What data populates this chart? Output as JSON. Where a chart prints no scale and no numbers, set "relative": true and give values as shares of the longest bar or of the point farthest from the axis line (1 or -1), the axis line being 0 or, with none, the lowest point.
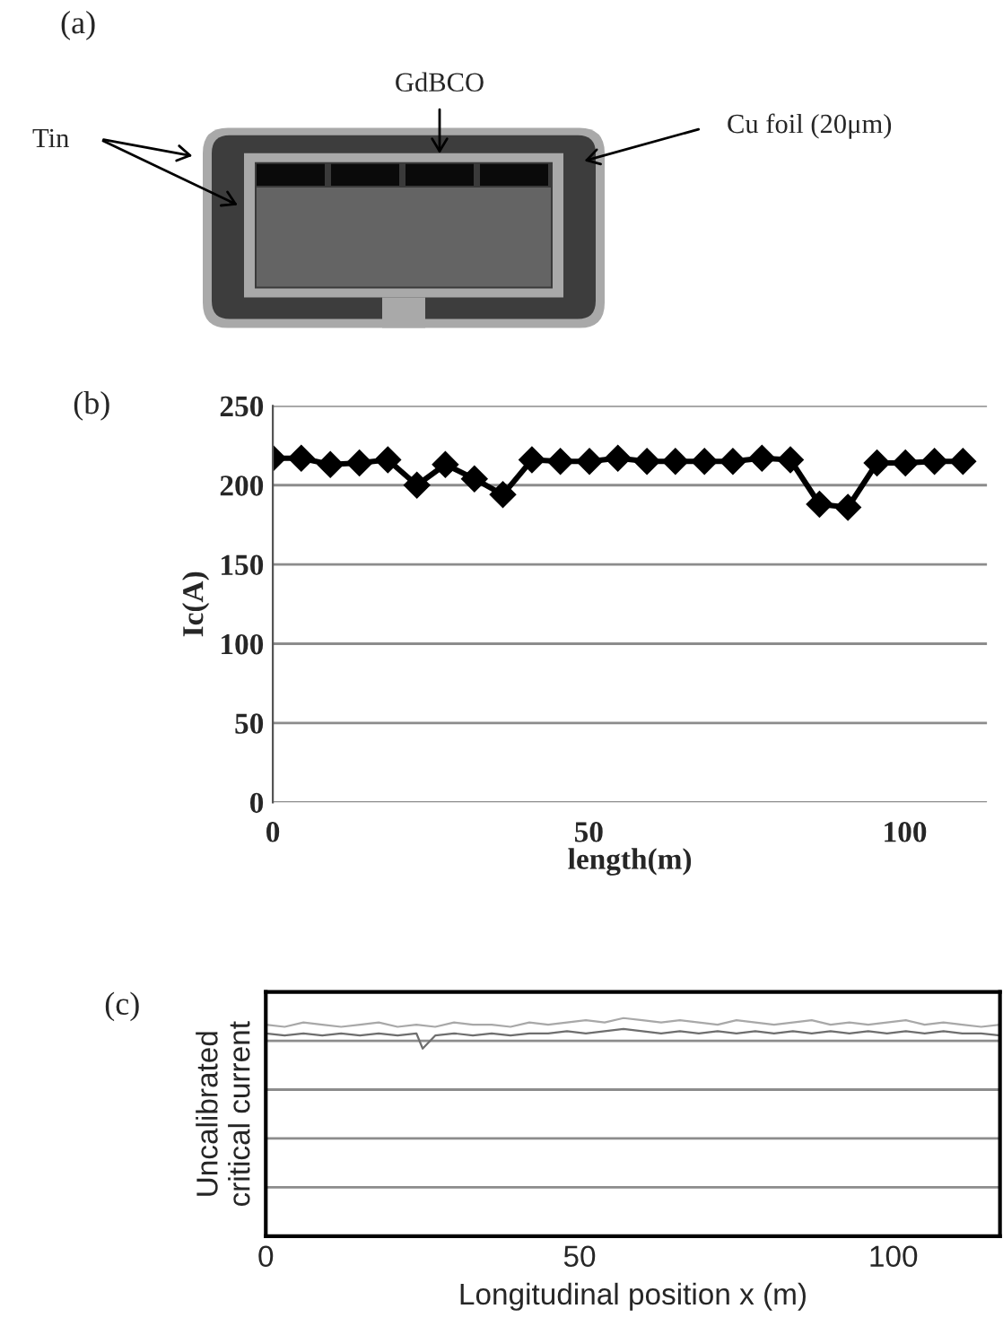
{
  "chart_data": [
    {
      "type": "other",
      "title": "(a)",
      "annotations": [
        "Tin",
        "GdBCO",
        "Cu foil (20μm)"
      ]
    },
    {
      "type": "line",
      "title": "(b)",
      "xlabel": "length(m)",
      "ylabel": "Ic(A)",
      "x": [
        0,
        4.5,
        9.1,
        13.7,
        18.2,
        22.8,
        27.3,
        31.9,
        36.4,
        41,
        45.5,
        50.1,
        54.6,
        59.2,
        63.7,
        68.3,
        72.8,
        77.4,
        81.9,
        86.5,
        91,
        95.6,
        100.1,
        104.7,
        109.2
      ],
      "series": [
        {
          "color": "#000000",
          "values": [
            217,
            217,
            213,
            214,
            216,
            200,
            213,
            204,
            194,
            216,
            215,
            215,
            217,
            215,
            215,
            215,
            215,
            217,
            216,
            188,
            186,
            214,
            214,
            215,
            215
          ]
        }
      ],
      "xlim": [
        0,
        113
      ],
      "xticks": [
        0,
        50,
        100
      ],
      "ylim": [
        0,
        250
      ],
      "yticks": [
        0,
        50,
        100,
        150,
        200,
        250
      ],
      "grid": "y",
      "marker": "diamond",
      "line_style": "solid"
    },
    {
      "type": "line",
      "title": "(c)",
      "xlabel": "Longitudinal position x (m)",
      "ylabel": "Uncalibrated\ncritical current",
      "relative": true,
      "xlim": [
        0,
        117
      ],
      "xticks": [
        0,
        50,
        100
      ],
      "tick_labels": "x",
      "grid": "y",
      "marker": "none",
      "line_style": "solid",
      "series": [
        {
          "color": "#a8a8a8",
          "x": [
            0,
            3,
            6,
            9,
            12,
            15,
            18,
            21,
            24,
            27,
            30,
            33,
            36,
            39,
            42,
            45,
            48,
            51,
            54,
            57,
            60,
            63,
            66,
            69,
            72,
            75,
            78,
            81,
            84,
            87,
            90,
            93,
            96,
            99,
            102,
            105,
            108,
            111,
            114,
            117
          ],
          "values": [
            0.97,
            0.96,
            0.98,
            0.97,
            0.96,
            0.97,
            0.98,
            0.96,
            0.97,
            0.96,
            0.98,
            0.97,
            0.97,
            0.96,
            0.98,
            0.97,
            0.98,
            0.99,
            0.98,
            1.0,
            0.99,
            0.98,
            0.99,
            0.98,
            0.97,
            0.99,
            0.98,
            0.97,
            0.98,
            0.99,
            0.97,
            0.98,
            0.97,
            0.98,
            0.99,
            0.97,
            0.98,
            0.97,
            0.96,
            0.97
          ]
        },
        {
          "color": "#6e6e6e",
          "x": [
            0,
            3,
            6,
            9,
            12,
            15,
            18,
            21,
            24,
            25,
            27,
            30,
            33,
            36,
            39,
            42,
            45,
            48,
            51,
            54,
            57,
            60,
            63,
            66,
            69,
            72,
            75,
            78,
            81,
            84,
            87,
            90,
            93,
            96,
            99,
            102,
            105,
            108,
            111,
            114,
            117
          ],
          "values": [
            0.93,
            0.92,
            0.93,
            0.92,
            0.93,
            0.92,
            0.93,
            0.92,
            0.93,
            0.86,
            0.92,
            0.93,
            0.92,
            0.93,
            0.92,
            0.93,
            0.93,
            0.94,
            0.93,
            0.94,
            0.95,
            0.94,
            0.93,
            0.94,
            0.93,
            0.94,
            0.93,
            0.94,
            0.93,
            0.94,
            0.93,
            0.94,
            0.93,
            0.94,
            0.93,
            0.94,
            0.93,
            0.94,
            0.93,
            0.93,
            0.92
          ]
        }
      ]
    }
  ]
}
